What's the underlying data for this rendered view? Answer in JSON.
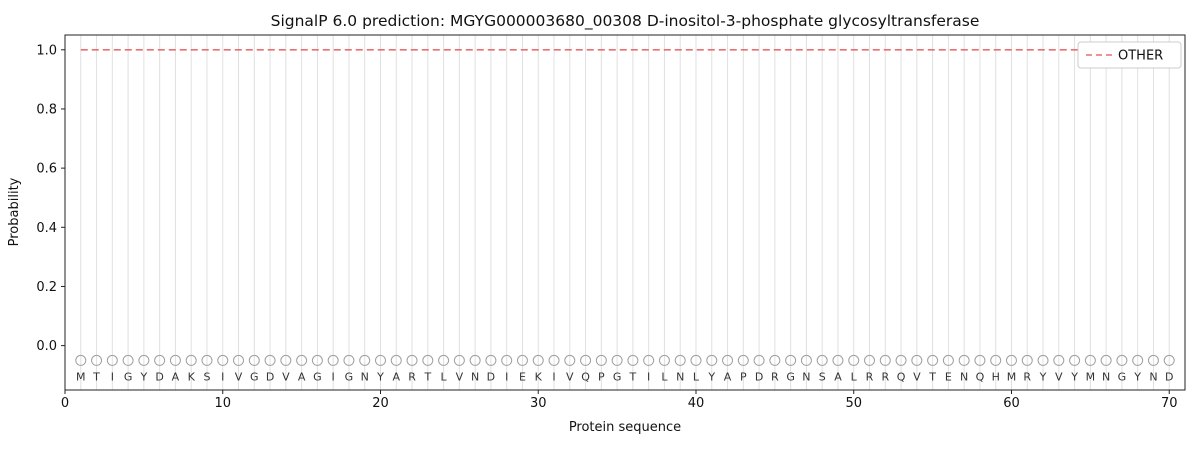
{
  "chart_data": {
    "type": "line",
    "title": "SignalP 6.0 prediction: MGYG000003680_00308 D-inositol-3-phosphate glycosyltransferase",
    "xlabel": "Protein sequence",
    "ylabel": "Probability",
    "xlim": [
      0,
      71
    ],
    "ylim": [
      -0.15,
      1.05
    ],
    "x_ticks": [
      0,
      10,
      20,
      30,
      40,
      50,
      60,
      70
    ],
    "x_tick_labels": [
      "0",
      "10",
      "20",
      "30",
      "40",
      "50",
      "60",
      "70"
    ],
    "y_ticks": [
      0.0,
      0.2,
      0.4,
      0.6,
      0.8,
      1.0
    ],
    "y_tick_labels": [
      "0.0",
      "0.2",
      "0.4",
      "0.6",
      "0.8",
      "1.0"
    ],
    "grid": true,
    "sequence": [
      "M",
      "T",
      "I",
      "G",
      "Y",
      "D",
      "A",
      "K",
      "S",
      "I",
      "V",
      "G",
      "D",
      "V",
      "A",
      "G",
      "I",
      "G",
      "N",
      "Y",
      "A",
      "R",
      "T",
      "L",
      "V",
      "N",
      "D",
      "I",
      "E",
      "K",
      "I",
      "V",
      "Q",
      "P",
      "G",
      "T",
      "I",
      "L",
      "N",
      "L",
      "Y",
      "A",
      "P",
      "D",
      "R",
      "G",
      "N",
      "S",
      "A",
      "L",
      "R",
      "R",
      "Q",
      "V",
      "T",
      "E",
      "N",
      "Q",
      "H",
      "M",
      "R",
      "Y",
      "V",
      "Y",
      "M",
      "N",
      "G",
      "Y",
      "N",
      "D"
    ],
    "marker_y": -0.05,
    "series": [
      {
        "name": "OTHER",
        "color": "#e56060",
        "style": "dashed",
        "x_start": 1,
        "values": [
          1.0,
          1.0,
          1.0,
          1.0,
          1.0,
          1.0,
          1.0,
          1.0,
          1.0,
          1.0,
          1.0,
          1.0,
          1.0,
          1.0,
          1.0,
          1.0,
          1.0,
          1.0,
          1.0,
          1.0,
          1.0,
          1.0,
          1.0,
          1.0,
          1.0,
          1.0,
          1.0,
          1.0,
          1.0,
          1.0,
          1.0,
          1.0,
          1.0,
          1.0,
          1.0,
          1.0,
          1.0,
          1.0,
          1.0,
          1.0,
          1.0,
          1.0,
          1.0,
          1.0,
          1.0,
          1.0,
          1.0,
          1.0,
          1.0,
          1.0,
          1.0,
          1.0,
          1.0,
          1.0,
          1.0,
          1.0,
          1.0,
          1.0,
          1.0,
          1.0,
          1.0,
          1.0,
          1.0,
          1.0,
          1.0,
          1.0,
          1.0,
          1.0,
          1.0,
          1.0
        ]
      }
    ],
    "legend": {
      "position": "upper right",
      "entries": [
        "OTHER"
      ]
    },
    "colors": {
      "grid": "#e0e0e0",
      "marker": "#a0a0a0",
      "letter": "#333333",
      "axis": "#222222",
      "tick_label": "#111111",
      "legend_border": "#cccccc",
      "background": "#ffffff"
    }
  }
}
